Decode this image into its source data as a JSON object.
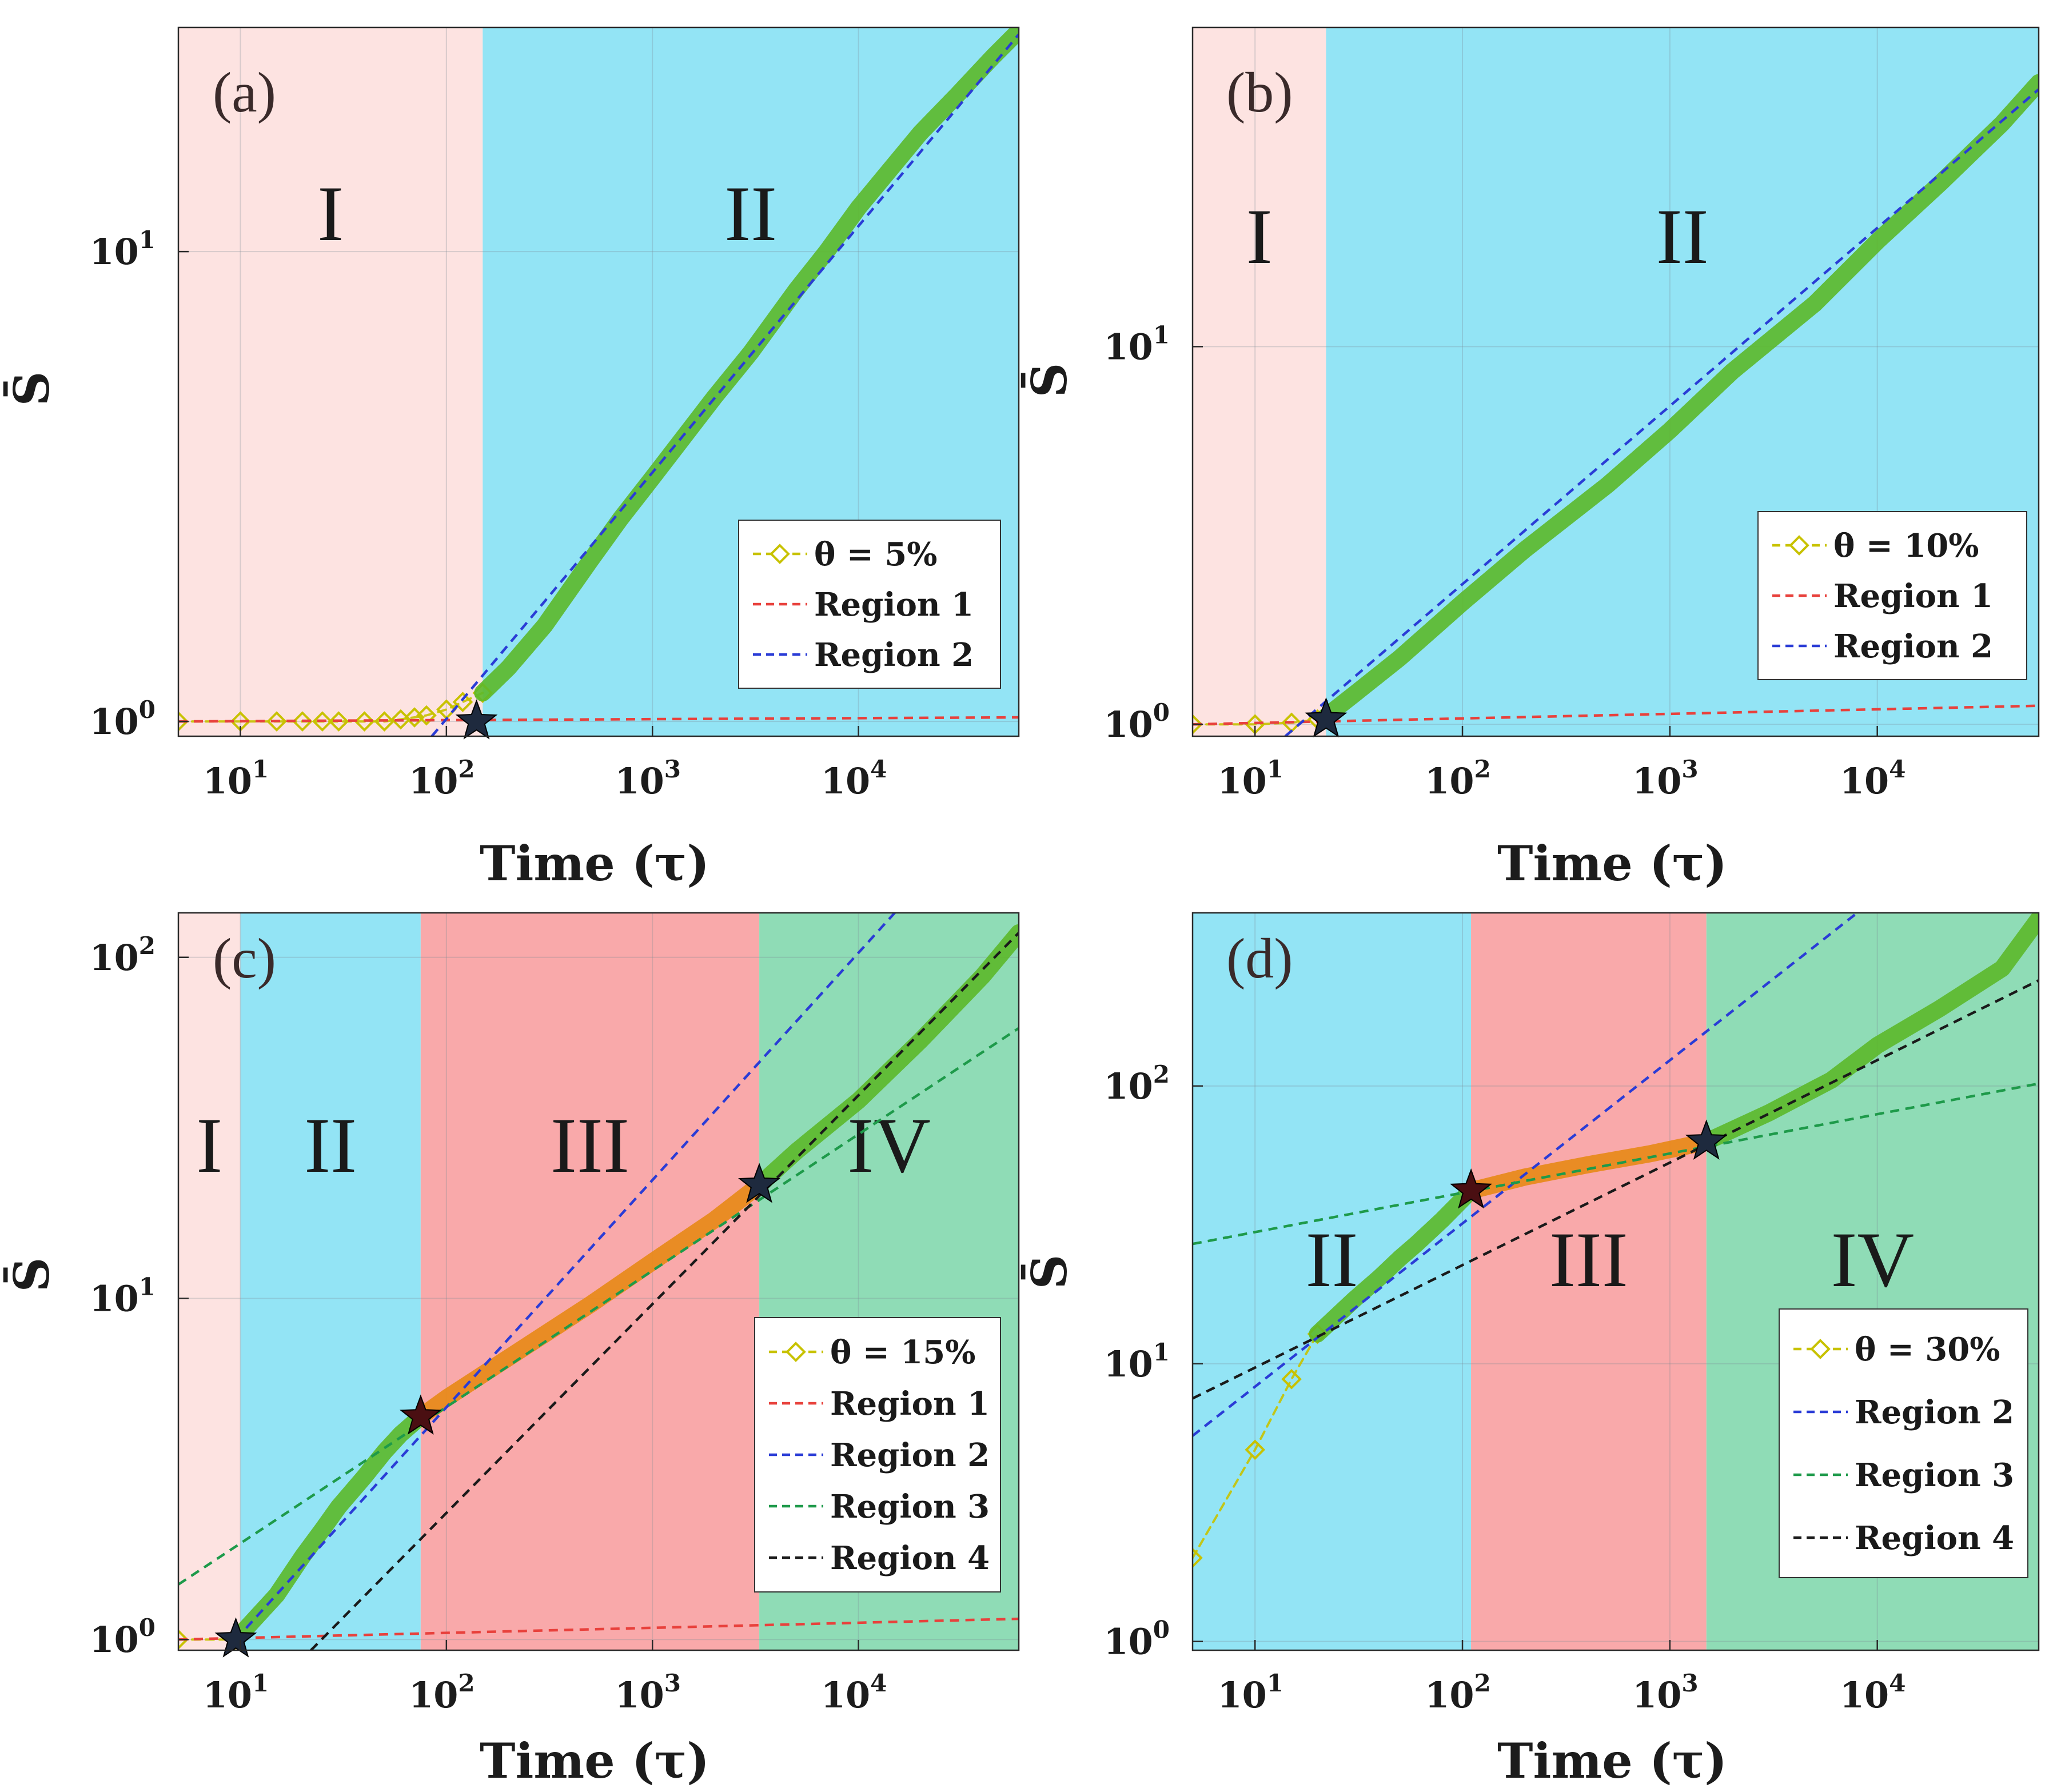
{
  "figure": {
    "colors": {
      "region_I_bg": "#fde3e1",
      "region_II_bg": "#93e4f5",
      "region_III_bg": "#f9a9aa",
      "region_IV_bg": "#8fdcb6",
      "yellow_marker": "#c8c200",
      "green_marker": "#5cb82a",
      "orange_marker": "#e88a1c",
      "star": "#1e2a3e",
      "star_dark_red": "#4a0f12"
    }
  },
  "chart_data": [
    {
      "id": "a",
      "type": "line",
      "panel_label": "(a)",
      "xlabel": "Time (τ)",
      "ylabel": "S̄",
      "xscale": "log",
      "yscale": "log",
      "xlim": [
        5,
        60000
      ],
      "ylim": [
        0.93,
        30
      ],
      "x_ticks": [
        {
          "v": 10,
          "label": "10",
          "exp": "1"
        },
        {
          "v": 100,
          "label": "10",
          "exp": "2"
        },
        {
          "v": 1000,
          "label": "10",
          "exp": "3"
        },
        {
          "v": 10000,
          "label": "10",
          "exp": "4"
        }
      ],
      "y_ticks": [
        {
          "v": 1,
          "label": "10",
          "exp": "0"
        },
        {
          "v": 10,
          "label": "10",
          "exp": "1"
        }
      ],
      "grid": true,
      "regions": [
        {
          "name": "I",
          "from": 5,
          "to": 150,
          "color": "#fde3e1"
        },
        {
          "name": "II",
          "from": 150,
          "to": 60000,
          "color": "#93e4f5"
        }
      ],
      "series": [
        {
          "name": "θ = 5%",
          "style": "diamond-dashed",
          "segments": [
            {
              "color": "#c8c200",
              "x": [
                5,
                10,
                15,
                20,
                25,
                30,
                40,
                50,
                60,
                70,
                80,
                100,
                120,
                150
              ],
              "y": [
                1.0,
                1.0,
                1.0,
                1.0,
                1.0,
                1.0,
                1.0,
                1.0,
                1.01,
                1.02,
                1.03,
                1.06,
                1.1,
                1.15
              ]
            },
            {
              "color": "#5cb82a",
              "x": [
                150,
                200,
                300,
                500,
                700,
                1000,
                2000,
                3000,
                5000,
                7000,
                10000,
                20000,
                30000,
                45000,
                60000
              ],
              "y": [
                1.15,
                1.3,
                1.6,
                2.2,
                2.7,
                3.3,
                4.9,
                6.1,
                8.3,
                10.0,
                12.4,
                17.9,
                21.5,
                26.0,
                29.5
              ]
            }
          ]
        },
        {
          "name": "Region 1",
          "style": "dashed",
          "color": "#e8413c",
          "x": [
            5,
            60000
          ],
          "y": [
            1.0,
            1.02
          ]
        },
        {
          "name": "Region 2",
          "style": "dashed",
          "color": "#2a3cd6",
          "x": [
            85,
            60000
          ],
          "y": [
            0.93,
            29.0
          ]
        }
      ],
      "markers": [
        {
          "type": "star",
          "x": 140,
          "y": 1.0,
          "color": "#1e2a3e"
        }
      ],
      "legend": {
        "placement": "lower-right",
        "entries": [
          "θ = 5%",
          "Region 1",
          "Region 2"
        ]
      }
    },
    {
      "id": "b",
      "type": "line",
      "panel_label": "(b)",
      "xlabel": "Time (τ)",
      "ylabel": "S̄",
      "xscale": "log",
      "yscale": "log",
      "xlim": [
        5,
        60000
      ],
      "ylim": [
        0.93,
        70
      ],
      "x_ticks": [
        {
          "v": 10,
          "label": "10",
          "exp": "1"
        },
        {
          "v": 100,
          "label": "10",
          "exp": "2"
        },
        {
          "v": 1000,
          "label": "10",
          "exp": "3"
        },
        {
          "v": 10000,
          "label": "10",
          "exp": "4"
        }
      ],
      "y_ticks": [
        {
          "v": 1,
          "label": "10",
          "exp": "0"
        },
        {
          "v": 10,
          "label": "10",
          "exp": "1"
        }
      ],
      "grid": true,
      "regions": [
        {
          "name": "I",
          "from": 5,
          "to": 22,
          "color": "#fde3e1"
        },
        {
          "name": "II",
          "from": 22,
          "to": 60000,
          "color": "#93e4f5"
        }
      ],
      "series": [
        {
          "name": "θ = 10%",
          "style": "diamond-dashed",
          "segments": [
            {
              "color": "#c8c200",
              "x": [
                5,
                10,
                15,
                20,
                22
              ],
              "y": [
                1.0,
                1.0,
                1.01,
                1.03,
                1.05
              ]
            },
            {
              "color": "#5cb82a",
              "x": [
                22,
                30,
                50,
                100,
                200,
                500,
                1000,
                2000,
                5000,
                10000,
                20000,
                40000,
                60000
              ],
              "y": [
                1.05,
                1.2,
                1.5,
                2.1,
                2.9,
                4.3,
                6.0,
                8.6,
                13.0,
                19.0,
                27.0,
                39.0,
                50.0
              ]
            }
          ]
        },
        {
          "name": "Region 1",
          "style": "dashed",
          "color": "#e8413c",
          "x": [
            5,
            60000
          ],
          "y": [
            1.0,
            1.12
          ]
        },
        {
          "name": "Region 2",
          "style": "dashed",
          "color": "#2a3cd6",
          "x": [
            14,
            60000
          ],
          "y": [
            0.93,
            48.0
          ]
        }
      ],
      "markers": [
        {
          "type": "star",
          "x": 22,
          "y": 1.03,
          "color": "#1e2a3e"
        }
      ],
      "legend": {
        "placement": "lower-right",
        "entries": [
          "θ = 10%",
          "Region 1",
          "Region 2"
        ]
      }
    },
    {
      "id": "c",
      "type": "line",
      "panel_label": "(c)",
      "xlabel": "Time (τ)",
      "ylabel": "S̄",
      "xscale": "log",
      "yscale": "log",
      "xlim": [
        5,
        60000
      ],
      "ylim": [
        0.93,
        135
      ],
      "x_ticks": [
        {
          "v": 10,
          "label": "10",
          "exp": "1"
        },
        {
          "v": 100,
          "label": "10",
          "exp": "2"
        },
        {
          "v": 1000,
          "label": "10",
          "exp": "3"
        },
        {
          "v": 10000,
          "label": "10",
          "exp": "4"
        }
      ],
      "y_ticks": [
        {
          "v": 1,
          "label": "10",
          "exp": "0"
        },
        {
          "v": 10,
          "label": "10",
          "exp": "1"
        },
        {
          "v": 100,
          "label": "10",
          "exp": "2"
        }
      ],
      "grid": true,
      "regions": [
        {
          "name": "I",
          "from": 5,
          "to": 10,
          "color": "#fde3e1"
        },
        {
          "name": "II",
          "from": 10,
          "to": 75,
          "color": "#93e4f5"
        },
        {
          "name": "III",
          "from": 75,
          "to": 3300,
          "color": "#f9a9aa"
        },
        {
          "name": "IV",
          "from": 3300,
          "to": 60000,
          "color": "#8fdcb6"
        }
      ],
      "series": [
        {
          "name": "θ = 15%",
          "style": "diamond-dashed",
          "segments": [
            {
              "color": "#c8c200",
              "x": [
                5,
                9.5
              ],
              "y": [
                1.0,
                1.0
              ]
            },
            {
              "color": "#5cb82a",
              "x": [
                9.5,
                15,
                20,
                25,
                30,
                40,
                50,
                60,
                75
              ],
              "y": [
                1.0,
                1.35,
                1.75,
                2.1,
                2.45,
                3.0,
                3.55,
                4.0,
                4.5
              ]
            },
            {
              "color": "#e88a1c",
              "x": [
                75,
                100,
                200,
                500,
                1000,
                2000,
                3300
              ],
              "y": [
                4.5,
                5.1,
                6.7,
                9.6,
                12.8,
                17.0,
                21.5
              ]
            },
            {
              "color": "#5cb82a",
              "x": [
                3300,
                5000,
                10000,
                20000,
                40000,
                60000
              ],
              "y": [
                21.5,
                27.0,
                38.0,
                57.0,
                88.0,
                118.0
              ]
            }
          ]
        },
        {
          "name": "Region 1",
          "style": "dashed",
          "color": "#e8413c",
          "x": [
            5,
            60000
          ],
          "y": [
            1.0,
            1.15
          ]
        },
        {
          "name": "Region 2",
          "style": "dashed",
          "color": "#2a3cd6",
          "x": [
            9.5,
            15000
          ],
          "y": [
            1.0,
            135.0
          ]
        },
        {
          "name": "Region 3",
          "style": "dashed",
          "color": "#1e9a4a",
          "x": [
            5,
            60000
          ],
          "y": [
            1.45,
            62.0
          ]
        },
        {
          "name": "Region 4",
          "style": "dashed",
          "color": "#1a1a1a",
          "x": [
            22,
            60000
          ],
          "y": [
            0.93,
            118.0
          ]
        }
      ],
      "markers": [
        {
          "type": "star",
          "x": 9.5,
          "y": 1.0,
          "color": "#1e2a3e"
        },
        {
          "type": "star",
          "x": 75,
          "y": 4.5,
          "color": "#4a0f12"
        },
        {
          "type": "star",
          "x": 3300,
          "y": 21.5,
          "color": "#1e2a3e"
        }
      ],
      "legend": {
        "placement": "lower-right",
        "entries": [
          "θ = 15%",
          "Region 1",
          "Region 2",
          "Region 3",
          "Region 4"
        ]
      }
    },
    {
      "id": "d",
      "type": "line",
      "panel_label": "(d)",
      "xlabel": "Time (τ)",
      "ylabel": "S̄",
      "xscale": "log",
      "yscale": "log",
      "xlim": [
        5,
        60000
      ],
      "ylim": [
        0.93,
        420
      ],
      "x_ticks": [
        {
          "v": 10,
          "label": "10",
          "exp": "1"
        },
        {
          "v": 100,
          "label": "10",
          "exp": "2"
        },
        {
          "v": 1000,
          "label": "10",
          "exp": "3"
        },
        {
          "v": 10000,
          "label": "10",
          "exp": "4"
        }
      ],
      "y_ticks": [
        {
          "v": 1,
          "label": "10",
          "exp": "0"
        },
        {
          "v": 10,
          "label": "10",
          "exp": "1"
        },
        {
          "v": 100,
          "label": "10",
          "exp": "2"
        }
      ],
      "grid": true,
      "regions": [
        {
          "name": "II",
          "from": 5,
          "to": 110,
          "color": "#93e4f5"
        },
        {
          "name": "III",
          "from": 110,
          "to": 1500,
          "color": "#f9a9aa"
        },
        {
          "name": "IV",
          "from": 1500,
          "to": 60000,
          "color": "#8fdcb6"
        }
      ],
      "series": [
        {
          "name": "θ = 30%",
          "style": "diamond-dashed",
          "segments": [
            {
              "color": "#c8c200",
              "x": [
                5,
                10,
                15,
                20
              ],
              "y": [
                2.0,
                4.9,
                8.8,
                12.8
              ]
            },
            {
              "color": "#5cb82a",
              "x": [
                20,
                30,
                40,
                50,
                60,
                80,
                110
              ],
              "y": [
                12.8,
                17.0,
                20.5,
                24.0,
                27.0,
                33.0,
                42.0
              ]
            },
            {
              "color": "#e88a1c",
              "x": [
                110,
                200,
                400,
                800,
                1500
              ],
              "y": [
                42.0,
                47.0,
                52.0,
                57.0,
                63.0
              ]
            },
            {
              "color": "#5cb82a",
              "x": [
                1500,
                3000,
                6000,
                10000,
                20000,
                40000,
                60000
              ],
              "y": [
                63.0,
                80.0,
                105.0,
                140.0,
                190.0,
                265.0,
                400.0
              ]
            }
          ]
        },
        {
          "name": "Region 2",
          "style": "dashed",
          "color": "#2a3cd6",
          "x": [
            5,
            8000
          ],
          "y": [
            5.5,
            420.0
          ]
        },
        {
          "name": "Region 3",
          "style": "dashed",
          "color": "#1e9a4a",
          "x": [
            5,
            60000
          ],
          "y": [
            27.0,
            102.0
          ]
        },
        {
          "name": "Region 4",
          "style": "dashed",
          "color": "#1a1a1a",
          "x": [
            5,
            60000
          ],
          "y": [
            7.5,
            240.0
          ]
        }
      ],
      "markers": [
        {
          "type": "star",
          "x": 110,
          "y": 42.0,
          "color": "#4a0f12"
        },
        {
          "type": "star",
          "x": 1500,
          "y": 63.0,
          "color": "#1e2a3e"
        }
      ],
      "legend": {
        "placement": "lower-right",
        "entries": [
          "θ = 30%",
          "Region 2",
          "Region 3",
          "Region 4"
        ]
      }
    }
  ]
}
